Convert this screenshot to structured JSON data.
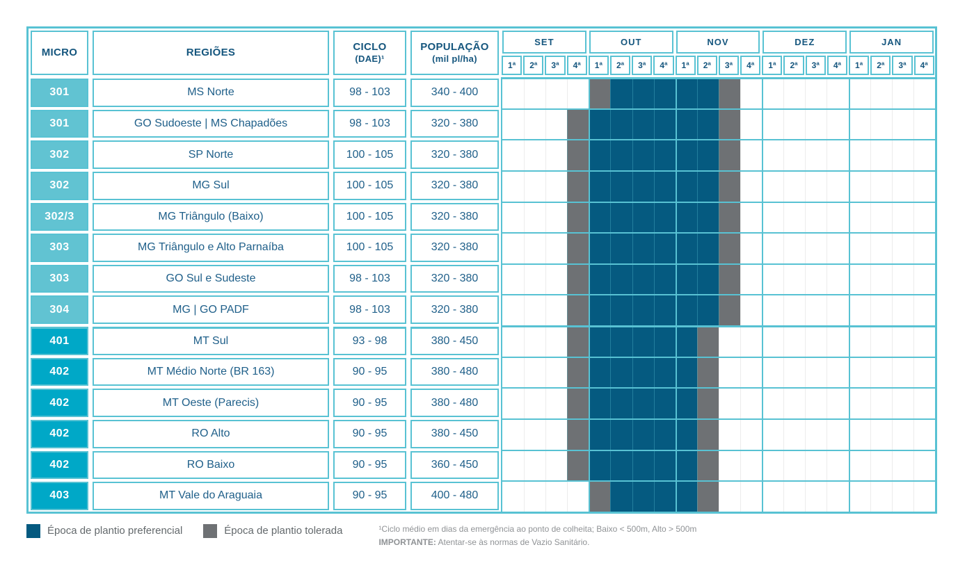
{
  "table": {
    "headers": {
      "micro": "MICRO",
      "regioes": "REGIÕES",
      "ciclo": [
        "CICLO",
        "(DAE)¹"
      ],
      "populacao": [
        "POPULAÇÃO",
        "(mil pl/ha)"
      ]
    }
  },
  "legend": {
    "preferencial": "Época de plantio preferencial",
    "tolerada": "Época de plantio tolerada"
  },
  "footnotes": {
    "line1": "¹Ciclo médio em dias da emergência ao ponto de colheita; Baixo < 500m, Alto > 500m",
    "line2_label": "IMPORTANTE:",
    "line2_text": "Atentar-se às normas de Vazio Sanitário."
  },
  "colors": {
    "border_teal": "#58c2d3",
    "header_text": "#15567e",
    "micro_group_300": "#61c3d2",
    "micro_group_400": "#00a8c7",
    "preferencial_fill": "#055a80",
    "tolerada_fill": "#6e7174"
  },
  "chart_data": {
    "type": "table",
    "columns": [
      "MICRO",
      "REGIÕES",
      "CICLO (DAE)¹",
      "POPULAÇÃO (mil pl/ha)"
    ],
    "timeline": {
      "months": [
        "SET",
        "OUT",
        "NOV",
        "DEZ",
        "JAN"
      ],
      "week_labels": [
        "1ª",
        "2ª",
        "3ª",
        "4ª"
      ]
    },
    "cell_codes": {
      "P": "Época de plantio preferencial",
      "T": "Época de plantio tolerada",
      "-": "empty"
    },
    "rows": [
      {
        "micro": "301",
        "regiao": "MS Norte",
        "ciclo": "98 - 103",
        "populacao": "340 - 400",
        "tone": "light",
        "cells": "----TPPPPPT---------"
      },
      {
        "micro": "301",
        "regiao": "GO Sudoeste | MS Chapadões",
        "ciclo": "98 - 103",
        "populacao": "320 - 380",
        "tone": "light",
        "cells": "---TPPPPPPT---------"
      },
      {
        "micro": "302",
        "regiao": "SP Norte",
        "ciclo": "100 - 105",
        "populacao": "320 - 380",
        "tone": "light",
        "cells": "---TPPPPPPT---------"
      },
      {
        "micro": "302",
        "regiao": "MG Sul",
        "ciclo": "100 - 105",
        "populacao": "320 - 380",
        "tone": "light",
        "cells": "---TPPPPPPT---------"
      },
      {
        "micro": "302/3",
        "regiao": "MG Triângulo (Baixo)",
        "ciclo": "100 - 105",
        "populacao": "320 - 380",
        "tone": "light",
        "cells": "---TPPPPPPT---------"
      },
      {
        "micro": "303",
        "regiao": "MG Triângulo e Alto Parnaíba",
        "ciclo": "100 - 105",
        "populacao": "320 - 380",
        "tone": "light",
        "cells": "---TPPPPPPT---------"
      },
      {
        "micro": "303",
        "regiao": "GO Sul e Sudeste",
        "ciclo": "98 - 103",
        "populacao": "320 - 380",
        "tone": "light",
        "cells": "---TPPPPPPT---------"
      },
      {
        "micro": "304",
        "regiao": "MG | GO PADF",
        "ciclo": "98 - 103",
        "populacao": "320 - 380",
        "tone": "light",
        "cells": "---TPPPPPPT---------"
      },
      {
        "micro": "401",
        "regiao": "MT Sul",
        "ciclo": "93 - 98",
        "populacao": "380 - 450",
        "tone": "dark",
        "group_start": true,
        "cells": "---TPPPPPT----------"
      },
      {
        "micro": "402",
        "regiao": "MT Médio Norte (BR 163)",
        "ciclo": "90 - 95",
        "populacao": "380 - 480",
        "tone": "dark",
        "cells": "---TPPPPPT----------"
      },
      {
        "micro": "402",
        "regiao": "MT Oeste (Parecis)",
        "ciclo": "90 - 95",
        "populacao": "380 - 480",
        "tone": "dark",
        "cells": "---TPPPPPT----------"
      },
      {
        "micro": "402",
        "regiao": "RO Alto",
        "ciclo": "90 - 95",
        "populacao": "380 - 450",
        "tone": "dark",
        "cells": "---TPPPPPT----------"
      },
      {
        "micro": "402",
        "regiao": "RO Baixo",
        "ciclo": "90 - 95",
        "populacao": "360 - 450",
        "tone": "dark",
        "cells": "---TPPPPPT----------"
      },
      {
        "micro": "403",
        "regiao": "MT Vale do Araguaia",
        "ciclo": "90 - 95",
        "populacao": "400 - 480",
        "tone": "dark",
        "cells": "----TPPPPT----------"
      }
    ]
  }
}
